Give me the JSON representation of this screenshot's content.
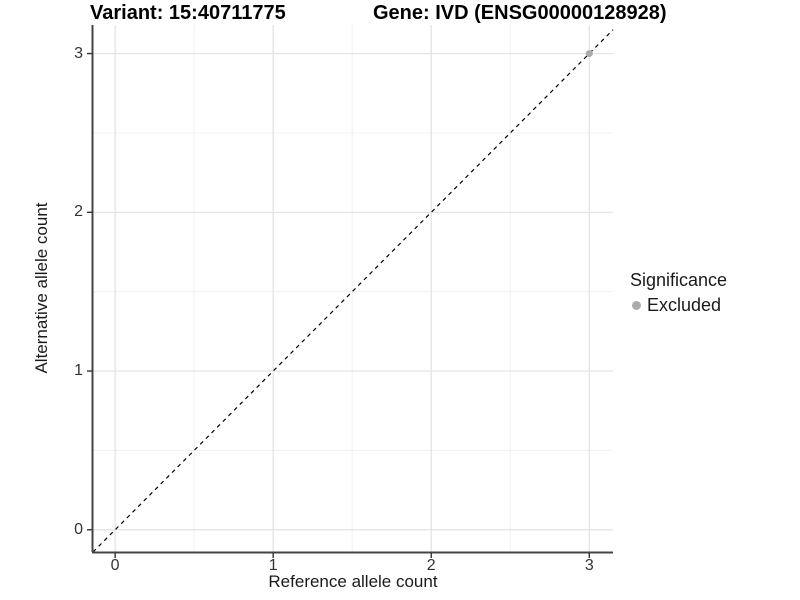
{
  "chart_data": {
    "type": "scatter",
    "title_left": "Variant: 15:40711775",
    "title_right": "Gene: IVD (ENSG00000128928)",
    "xlabel": "Reference allele count",
    "ylabel": "Alternative allele count",
    "xlim": [
      -0.14,
      3.15
    ],
    "ylim": [
      -0.14,
      3.18
    ],
    "x_ticks": [
      0,
      1,
      2,
      3
    ],
    "y_ticks": [
      0,
      1,
      2,
      3
    ],
    "x_minor": [
      0.5,
      1.5,
      2.5
    ],
    "y_minor": [
      0.5,
      1.5,
      2.5
    ],
    "grid": "major+minor",
    "points": [
      {
        "x": 3,
        "y": 3,
        "series": "Excluded"
      }
    ],
    "reference_line": {
      "type": "abline",
      "slope": 1,
      "intercept": 0,
      "style": "dashed",
      "color": "#000000"
    },
    "legend": {
      "title": "Significance",
      "position": "right",
      "items": [
        {
          "label": "Excluded",
          "color": "#ababab",
          "marker": "circle"
        }
      ]
    },
    "colors": {
      "point_excluded": "#ababab",
      "grid_major": "#e2e2e2",
      "grid_minor": "#f0f0f0",
      "axis_line": "#444444",
      "tick_mark": "#333333",
      "background": "#ffffff"
    }
  }
}
